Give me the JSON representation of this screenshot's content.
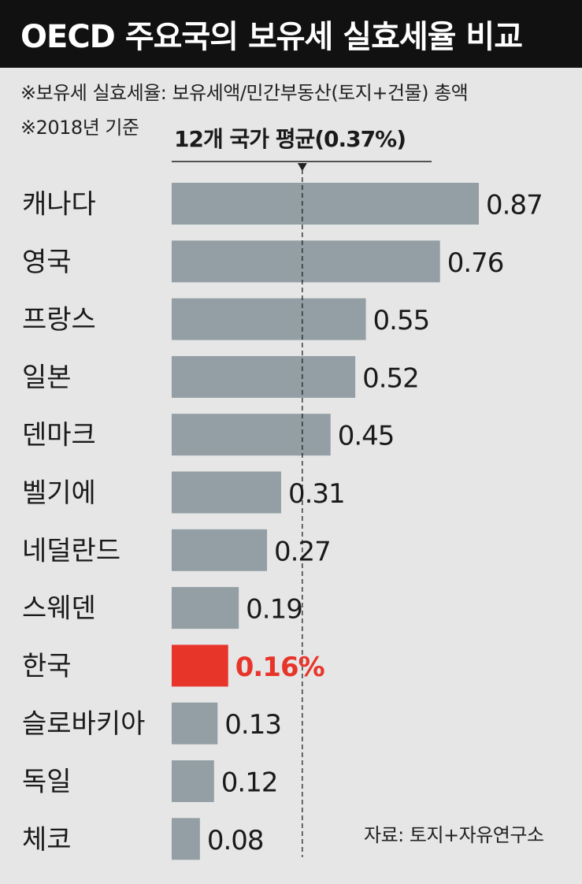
{
  "title": "OECD 주요국의 보유세 실효세율 비교",
  "notes": [
    "※보유세 실효세율: 보유세액/민간부동산(토지+건물) 총액",
    "※2018년 기준"
  ],
  "source": "자료: 토지+자유연구소",
  "colors": {
    "bar": "#939fa4",
    "highlight": "#e8352a",
    "text": "#1a1a1a",
    "title_bg": "#111111",
    "background": "#e6e6e6"
  },
  "chart_data": {
    "type": "bar",
    "orientation": "horizontal",
    "categories": [
      "캐나다",
      "영국",
      "프랑스",
      "일본",
      "덴마크",
      "벨기에",
      "네덜란드",
      "스웨덴",
      "한국",
      "슬로바키아",
      "독일",
      "체코"
    ],
    "values": [
      0.87,
      0.76,
      0.55,
      0.52,
      0.45,
      0.31,
      0.27,
      0.19,
      0.16,
      0.13,
      0.12,
      0.08
    ],
    "value_labels": [
      "0.87",
      "0.76",
      "0.55",
      "0.52",
      "0.45",
      "0.31",
      "0.27",
      "0.19",
      "0.16%",
      "0.13",
      "0.12",
      "0.08"
    ],
    "highlight_category": "한국",
    "reference_line": {
      "value": 0.37,
      "label": "12개 국가 평균(0.37%)"
    },
    "xlim": [
      0,
      0.87
    ],
    "grid": false,
    "legend": "none"
  }
}
